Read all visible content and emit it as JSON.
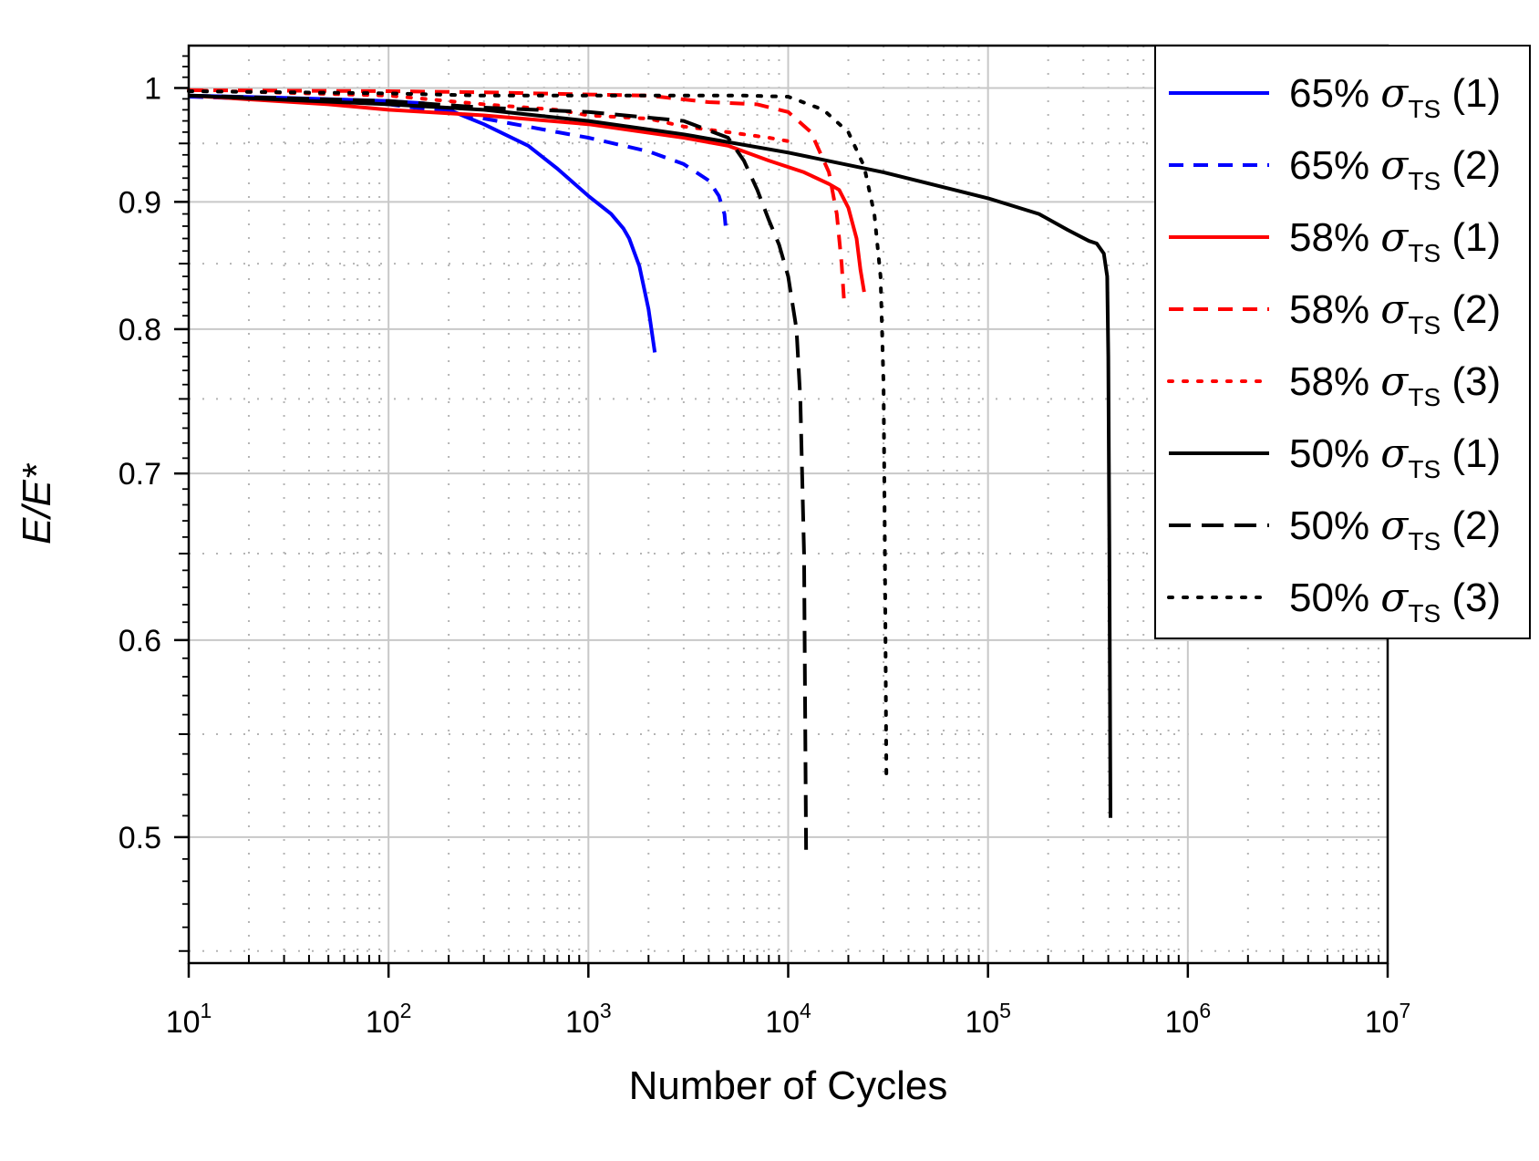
{
  "chart_data": {
    "type": "line",
    "title": "",
    "xlabel": "Number of Cycles",
    "ylabel": "E/E*",
    "xscale": "log",
    "yscale": "log",
    "xlim": [
      10,
      10000000
    ],
    "ylim": [
      0.445,
      1.04
    ],
    "x_ticks": [
      {
        "value": 10,
        "base": "10",
        "exp": "1"
      },
      {
        "value": 100,
        "base": "10",
        "exp": "2"
      },
      {
        "value": 1000,
        "base": "10",
        "exp": "3"
      },
      {
        "value": 10000,
        "base": "10",
        "exp": "4"
      },
      {
        "value": 100000,
        "base": "10",
        "exp": "5"
      },
      {
        "value": 1000000,
        "base": "10",
        "exp": "6"
      },
      {
        "value": 10000000,
        "base": "10",
        "exp": "7"
      }
    ],
    "y_ticks": [
      {
        "value": 0.5,
        "label": "0.5"
      },
      {
        "value": 0.6,
        "label": "0.6"
      },
      {
        "value": 0.7,
        "label": "0.7"
      },
      {
        "value": 0.8,
        "label": "0.8"
      },
      {
        "value": 0.9,
        "label": "0.9"
      },
      {
        "value": 1.0,
        "label": "1"
      }
    ],
    "grid": true,
    "legend_position": "top-right",
    "series": [
      {
        "name": "65% σTS (1)",
        "label_pct": "65%",
        "label_num": "(1)",
        "color": "#0000ff",
        "dash": "solid",
        "points": [
          [
            10,
            0.993
          ],
          [
            30,
            0.991
          ],
          [
            100,
            0.988
          ],
          [
            150,
            0.986
          ],
          [
            200,
            0.98
          ],
          [
            300,
            0.967
          ],
          [
            500,
            0.948
          ],
          [
            700,
            0.928
          ],
          [
            1000,
            0.905
          ],
          [
            1300,
            0.89
          ],
          [
            1500,
            0.878
          ],
          [
            1600,
            0.87
          ],
          [
            1800,
            0.848
          ],
          [
            2000,
            0.815
          ],
          [
            2150,
            0.783
          ]
        ]
      },
      {
        "name": "65% σTS (2)",
        "label_pct": "65%",
        "label_num": "(2)",
        "color": "#0000ff",
        "dash": "dash",
        "points": [
          [
            10,
            0.992
          ],
          [
            50,
            0.988
          ],
          [
            100,
            0.985
          ],
          [
            200,
            0.978
          ],
          [
            400,
            0.968
          ],
          [
            700,
            0.96
          ],
          [
            1000,
            0.955
          ],
          [
            2000,
            0.943
          ],
          [
            3000,
            0.932
          ],
          [
            4000,
            0.918
          ],
          [
            4500,
            0.905
          ],
          [
            4800,
            0.89
          ],
          [
            4900,
            0.874
          ]
        ]
      },
      {
        "name": "58% σTS (1)",
        "label_pct": "58%",
        "label_num": "(1)",
        "color": "#ff0000",
        "dash": "solid",
        "points": [
          [
            10,
            0.993
          ],
          [
            50,
            0.985
          ],
          [
            100,
            0.98
          ],
          [
            300,
            0.975
          ],
          [
            1000,
            0.967
          ],
          [
            3000,
            0.955
          ],
          [
            5000,
            0.948
          ],
          [
            8000,
            0.935
          ],
          [
            12000,
            0.925
          ],
          [
            16000,
            0.915
          ],
          [
            18000,
            0.91
          ],
          [
            20000,
            0.895
          ],
          [
            22000,
            0.87
          ],
          [
            23000,
            0.845
          ],
          [
            24000,
            0.828
          ]
        ]
      },
      {
        "name": "58% σTS (2)",
        "label_pct": "58%",
        "label_num": "(2)",
        "color": "#ff0000",
        "dash": "dash",
        "points": [
          [
            10,
            0.998
          ],
          [
            100,
            0.997
          ],
          [
            300,
            0.996
          ],
          [
            1000,
            0.994
          ],
          [
            2000,
            0.993
          ],
          [
            4000,
            0.987
          ],
          [
            7000,
            0.985
          ],
          [
            10000,
            0.978
          ],
          [
            13000,
            0.96
          ],
          [
            16000,
            0.925
          ],
          [
            17500,
            0.89
          ],
          [
            18500,
            0.85
          ],
          [
            19000,
            0.823
          ]
        ]
      },
      {
        "name": "58% σTS (3)",
        "label_pct": "58%",
        "label_num": "(3)",
        "color": "#ff0000",
        "dash": "dot",
        "points": [
          [
            10,
            0.998
          ],
          [
            100,
            0.993
          ],
          [
            300,
            0.985
          ],
          [
            700,
            0.98
          ],
          [
            1000,
            0.975
          ],
          [
            2000,
            0.972
          ],
          [
            3000,
            0.965
          ],
          [
            5000,
            0.96
          ],
          [
            8000,
            0.955
          ],
          [
            10000,
            0.952
          ]
        ]
      },
      {
        "name": "50% σTS (1)",
        "label_pct": "50%",
        "label_num": "(1)",
        "color": "#000000",
        "dash": "solid",
        "points": [
          [
            10,
            0.993
          ],
          [
            100,
            0.985
          ],
          [
            300,
            0.98
          ],
          [
            1000,
            0.97
          ],
          [
            3000,
            0.958
          ],
          [
            10000,
            0.942
          ],
          [
            30000,
            0.925
          ],
          [
            100000,
            0.903
          ],
          [
            180000,
            0.89
          ],
          [
            250000,
            0.877
          ],
          [
            320000,
            0.868
          ],
          [
            350000,
            0.866
          ],
          [
            380000,
            0.858
          ],
          [
            395000,
            0.84
          ],
          [
            400000,
            0.78
          ],
          [
            405000,
            0.65
          ],
          [
            410000,
            0.509
          ]
        ]
      },
      {
        "name": "50% σTS (2)",
        "label_pct": "50%",
        "label_num": "(2)",
        "color": "#000000",
        "dash": "longdash",
        "points": [
          [
            10,
            0.993
          ],
          [
            100,
            0.988
          ],
          [
            300,
            0.982
          ],
          [
            1000,
            0.978
          ],
          [
            3000,
            0.97
          ],
          [
            5000,
            0.955
          ],
          [
            6000,
            0.935
          ],
          [
            7000,
            0.91
          ],
          [
            8000,
            0.885
          ],
          [
            9000,
            0.865
          ],
          [
            10000,
            0.84
          ],
          [
            11000,
            0.8
          ],
          [
            11500,
            0.75
          ],
          [
            12000,
            0.65
          ],
          [
            12300,
            0.49
          ]
        ]
      },
      {
        "name": "50% σTS (3)",
        "label_pct": "50%",
        "label_num": "(3)",
        "color": "#000000",
        "dash": "dot",
        "points": [
          [
            10,
            0.997
          ],
          [
            100,
            0.995
          ],
          [
            300,
            0.993
          ],
          [
            1000,
            0.993
          ],
          [
            3000,
            0.993
          ],
          [
            6000,
            0.993
          ],
          [
            10000,
            0.992
          ],
          [
            15000,
            0.98
          ],
          [
            20000,
            0.96
          ],
          [
            24000,
            0.93
          ],
          [
            27000,
            0.89
          ],
          [
            29000,
            0.84
          ],
          [
            30000,
            0.76
          ],
          [
            30500,
            0.65
          ],
          [
            31000,
            0.529
          ]
        ]
      }
    ]
  },
  "legend": {
    "sigma": "σ",
    "subscript": "TS"
  }
}
